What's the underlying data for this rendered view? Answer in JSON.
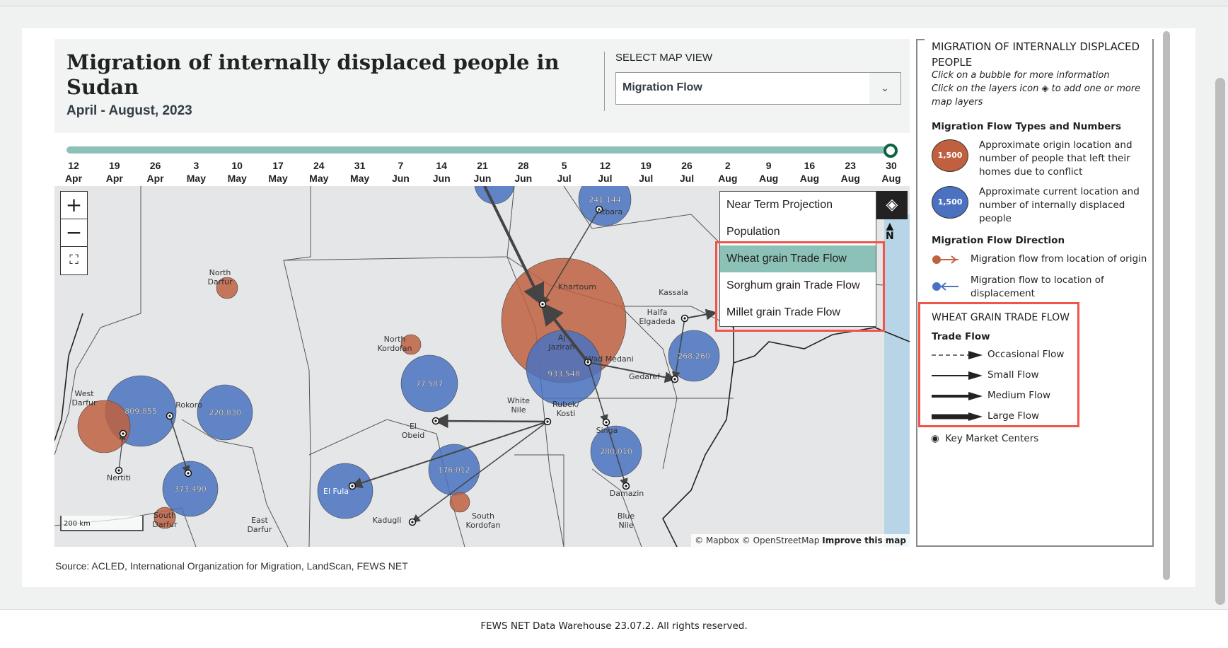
{
  "header": {
    "title": "Migration of internally displaced people in Sudan",
    "subtitle": "April - August, 2023",
    "select_label": "SELECT MAP VIEW",
    "select_value": "Migration Flow"
  },
  "timeline": {
    "progress": 1.0,
    "ticks": [
      [
        "12",
        "Apr"
      ],
      [
        "19",
        "Apr"
      ],
      [
        "26",
        "Apr"
      ],
      [
        "3",
        "May"
      ],
      [
        "10",
        "May"
      ],
      [
        "17",
        "May"
      ],
      [
        "24",
        "May"
      ],
      [
        "31",
        "May"
      ],
      [
        "7",
        "Jun"
      ],
      [
        "14",
        "Jun"
      ],
      [
        "21",
        "Jun"
      ],
      [
        "28",
        "Jun"
      ],
      [
        "5",
        "Jul"
      ],
      [
        "12",
        "Jul"
      ],
      [
        "19",
        "Jul"
      ],
      [
        "26",
        "Jul"
      ],
      [
        "2",
        "Aug"
      ],
      [
        "9",
        "Aug"
      ],
      [
        "16",
        "Aug"
      ],
      [
        "23",
        "Aug"
      ],
      [
        "30",
        "Aug"
      ]
    ]
  },
  "map": {
    "layers_menu": [
      "Near Term Projection",
      "Population",
      "Wheat grain Trade Flow",
      "Sorghum grain Trade Flow",
      "Millet grain Trade Flow"
    ],
    "selected_layer": "Wheat grain Trade Flow",
    "north": "N",
    "scale": "200 km",
    "attribution": "© Mapbox © OpenStreetMap",
    "improve": "Improve this map",
    "bubble_values": [
      "241,144",
      "933,548",
      "268,260",
      "77,587",
      "809,855",
      "220,830",
      "373,490",
      "176,012",
      "280,010"
    ],
    "places": [
      "Khartoum",
      "Aj Jazirah",
      "Wad Medani",
      "Halfa Elgadeda",
      "Kassala",
      "Gedaref",
      "White Nile",
      "Rubek/ Kosti",
      "El Obeid",
      "Singa",
      "Damazin",
      "Blue Nile",
      "South Kordofan",
      "Kadugli",
      "East Darfur",
      "Nertiti",
      "Rokoro",
      "West Darfur",
      "North Darfur",
      "North Kordofan",
      "South Darfur",
      "Atbara",
      "El Fula"
    ]
  },
  "source": "Source: ACLED, International Organization for Migration, LandScan, FEWS NET",
  "legend": {
    "title": "MIGRATION OF INTERNALLY DISPLACED PEOPLE",
    "hint1": "Click on a bubble for more information",
    "hint2a": "Click on the layers icon",
    "hint2b": "to add one or more map layers",
    "types_heading": "Migration Flow Types and Numbers",
    "bubble_sample": "1,500",
    "origin_text": "Approximate origin location and number of people that left their homes due to conflict",
    "current_text": "Approximate current location and number of internally displaced people",
    "direction_heading": "Migration Flow Direction",
    "from_origin": "Migration flow from location of origin",
    "to_displacement": "Migration flow to location of displacement",
    "trade_title": "WHEAT GRAIN TRADE FLOW",
    "trade_heading": "Trade Flow",
    "flows": [
      "Occasional Flow",
      "Small Flow",
      "Medium Flow",
      "Large Flow"
    ],
    "markets": "Key Market Centers",
    "colors": {
      "origin": "#c0603f",
      "current": "#4a72c0",
      "accent": "#8cc1b7",
      "highlight": "#f0544a"
    }
  },
  "footer": "FEWS NET Data Warehouse 23.07.2. All rights reserved."
}
